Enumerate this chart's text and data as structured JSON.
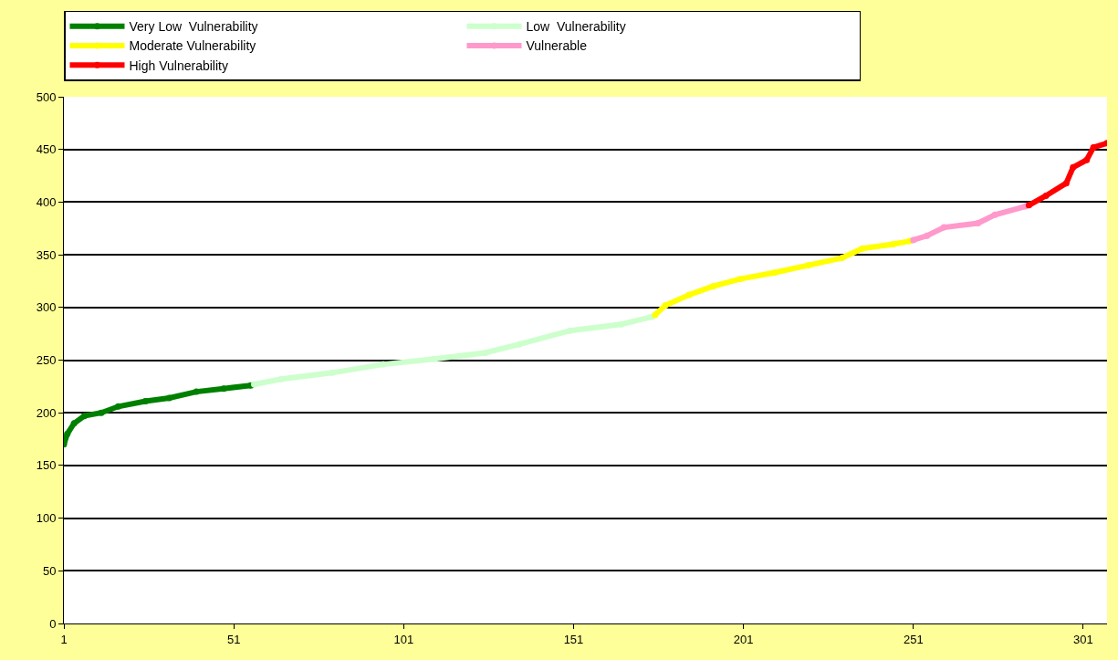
{
  "chart_data": {
    "type": "line",
    "series": [
      {
        "name": "Very Low  Vulnerability",
        "color": "#008000",
        "x": [
          1,
          2,
          4,
          7,
          12,
          17,
          25,
          32,
          40,
          48,
          56
        ],
        "values": [
          170,
          180,
          190,
          197,
          200,
          206,
          211,
          214,
          220,
          223,
          226
        ]
      },
      {
        "name": "Low  Vulnerability",
        "color": "#ccffcc",
        "x": [
          57,
          65,
          80,
          95,
          110,
          125,
          135,
          150,
          165,
          174
        ],
        "values": [
          227,
          232,
          238,
          246,
          251,
          257,
          265,
          278,
          284,
          291
        ]
      },
      {
        "name": "Moderate Vulnerability",
        "color": "#ffff00",
        "x": [
          175,
          178,
          185,
          192,
          200,
          210,
          220,
          230,
          236,
          245,
          250
        ],
        "values": [
          293,
          302,
          312,
          320,
          327,
          333,
          340,
          347,
          356,
          360,
          363
        ]
      },
      {
        "name": "Vulnerable",
        "color": "#ff99cc",
        "x": [
          251,
          255,
          260,
          270,
          275,
          284
        ],
        "values": [
          364,
          368,
          376,
          380,
          388,
          396
        ]
      },
      {
        "name": "High Vulnerability",
        "color": "#ff0000",
        "x": [
          285,
          290,
          296,
          298,
          302,
          304,
          308
        ],
        "values": [
          397,
          406,
          418,
          433,
          440,
          452,
          456
        ]
      }
    ],
    "xlim": [
      1,
      308
    ],
    "xticks": [
      1,
      51,
      101,
      151,
      201,
      251,
      301
    ],
    "ylim": [
      0,
      500
    ],
    "yticks": [
      0,
      50,
      100,
      150,
      200,
      250,
      300,
      350,
      400,
      450,
      500
    ],
    "grid": "y",
    "legend": "top",
    "marker": "circle",
    "line_style": "solid"
  }
}
